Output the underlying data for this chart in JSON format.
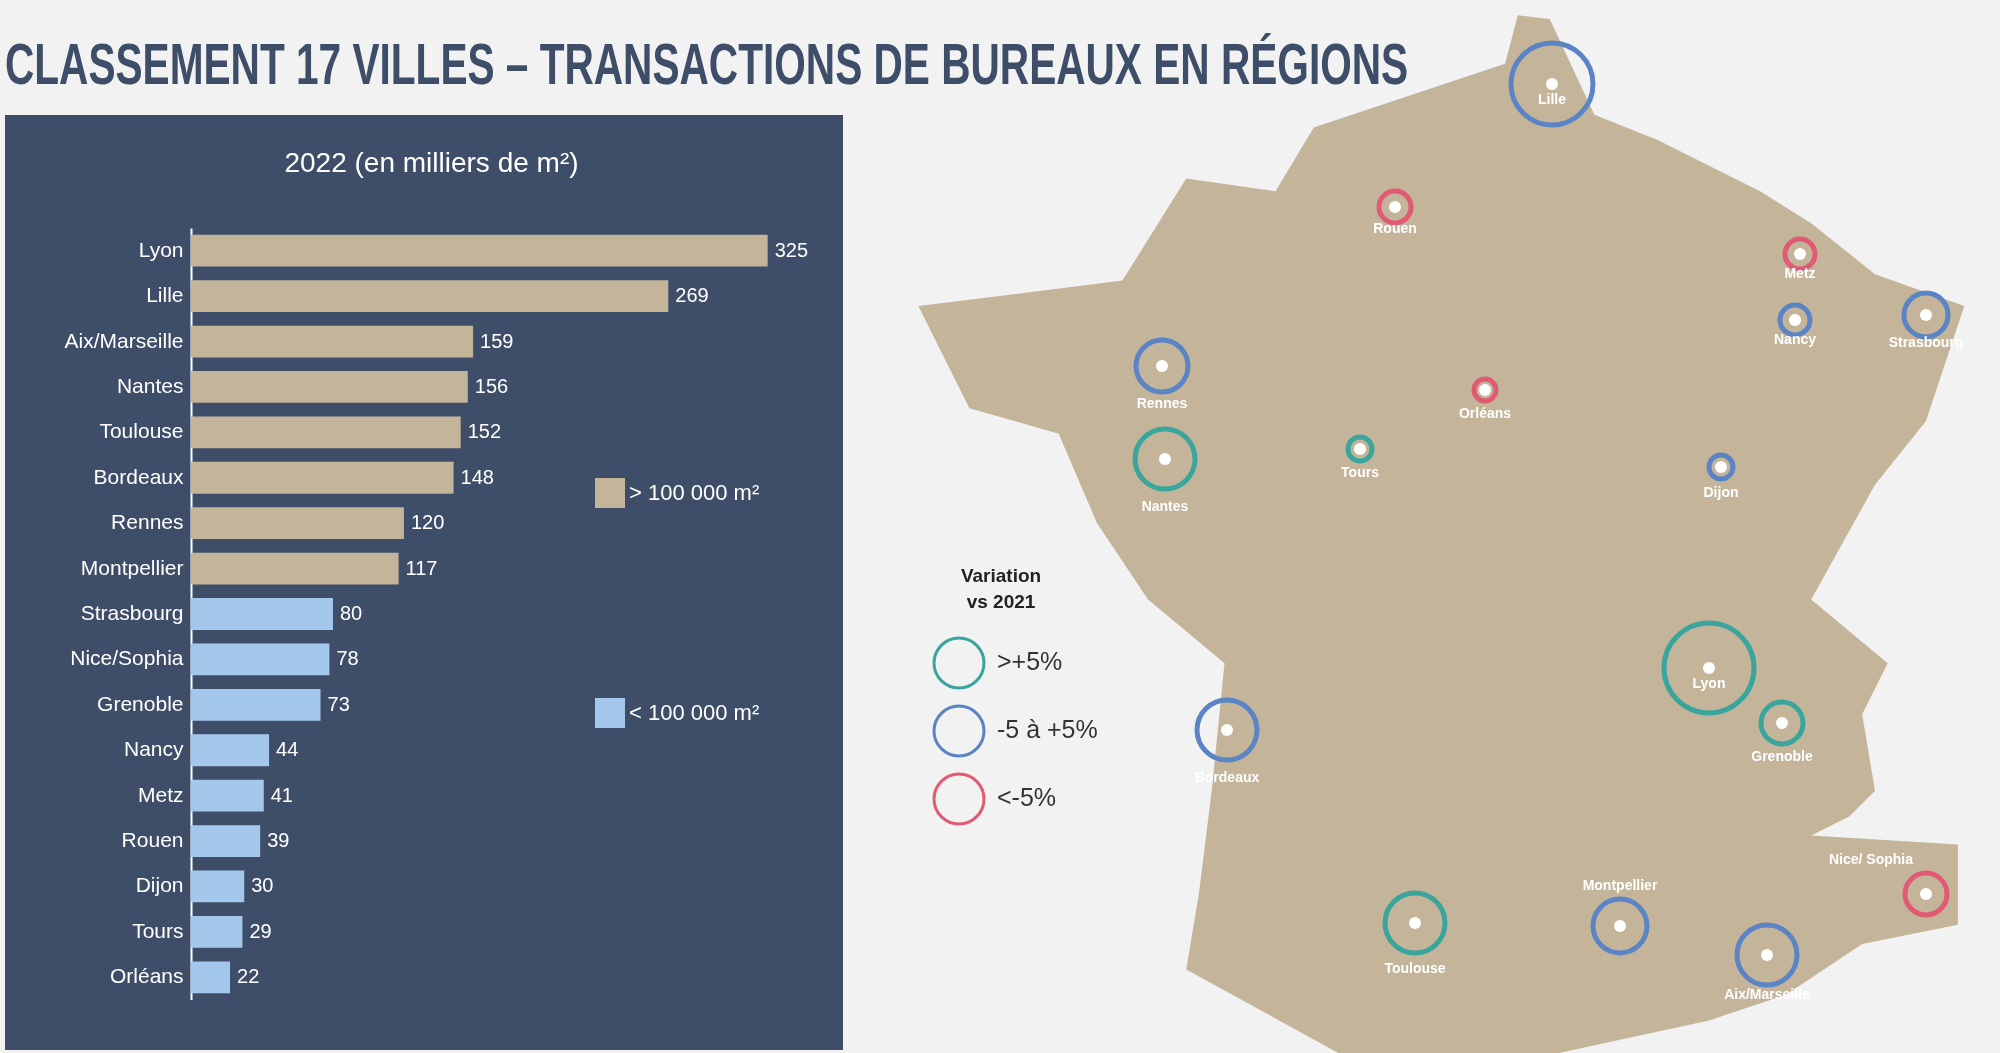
{
  "chart_data": [
    {
      "type": "bar",
      "orientation": "horizontal",
      "title": "CLASSEMENT 17 VILLES – TRANSACTIONS DE BUREAUX EN RÉGIONS",
      "subtitle": "2022 (en milliers de m²)",
      "categories": [
        "Lyon",
        "Lille",
        "Aix/Marseille",
        "Nantes",
        "Toulouse",
        "Bordeaux",
        "Rennes",
        "Montpellier",
        "Strasbourg",
        "Nice/Sophia",
        "Grenoble",
        "Nancy",
        "Metz",
        "Rouen",
        "Dijon",
        "Tours",
        "Orléans"
      ],
      "series": [
        {
          "name": "> 100 000 m²",
          "color": "#c4b59a",
          "values": [
            325,
            269,
            159,
            156,
            152,
            148,
            120,
            117,
            null,
            null,
            null,
            null,
            null,
            null,
            null,
            null,
            null
          ]
        },
        {
          "name": "< 100 000 m²",
          "color": "#a4c8ec",
          "values": [
            null,
            null,
            null,
            null,
            null,
            null,
            null,
            null,
            80,
            78,
            73,
            44,
            41,
            39,
            30,
            29,
            22
          ]
        }
      ],
      "tick_labels": "y",
      "data_labels": true,
      "legend": "right"
    },
    {
      "type": "other",
      "legend_title": "Variation\nvs 2021",
      "categories": [
        ">+5%",
        "-5 à +5%",
        "<-5%"
      ],
      "colors": [
        "#3aa59c",
        "#5b84c4",
        "#e05a74"
      ],
      "annotations": [
        "Lille",
        "Rouen",
        "Metz",
        "Nancy",
        "Strasbourg",
        "Rennes",
        "Orléans",
        "Tours",
        "Nantes",
        "Dijon",
        "Lyon",
        "Grenoble",
        "Bordeaux",
        "Montpellier",
        "Toulouse",
        "Aix/Marseille",
        "Nice/ Sophia"
      ]
    }
  ]
}
